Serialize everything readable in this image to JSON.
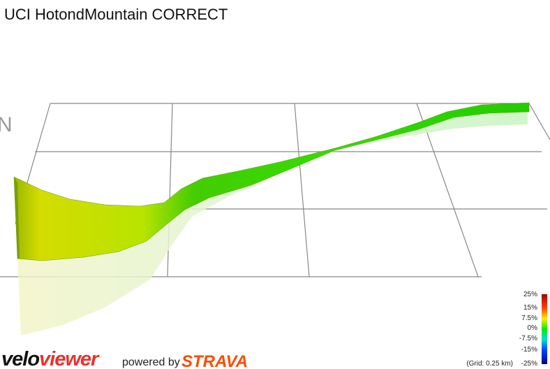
{
  "header": {
    "title": "UCI HotondMountain CORRECT",
    "compass": "N"
  },
  "legend": {
    "labels": [
      "25%",
      "15%",
      "7.5%",
      "0%",
      "-7.5%",
      "-15%",
      "-25%"
    ],
    "grid_note": "(Grid: 0.25 km)"
  },
  "footer": {
    "brand_part1": "velo",
    "brand_part2": "viewer",
    "powered_by": "powered by",
    "partner": "STRAVA"
  }
}
